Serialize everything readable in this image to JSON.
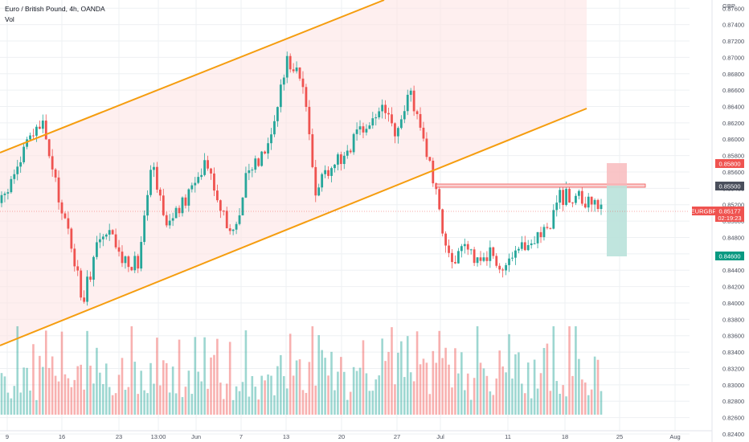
{
  "legend": {
    "title": "Euro / British Pound, 4h, OANDA",
    "volume_label": "Vol"
  },
  "axis": {
    "currency": "GBP",
    "price_ticks": [
      "0.87600",
      "0.87400",
      "0.87200",
      "0.87000",
      "0.86800",
      "0.86600",
      "0.86400",
      "0.86200",
      "0.86000",
      "0.85800",
      "0.85600",
      "0.85400",
      "0.85200",
      "0.85000",
      "0.84800",
      "0.84600",
      "0.84400",
      "0.84200",
      "0.84000",
      "0.83800",
      "0.83600",
      "0.83400",
      "0.83200",
      "0.83000",
      "0.82800",
      "0.82600",
      "0.82400"
    ],
    "time_ticks": [
      "9",
      "16",
      "23",
      "13:00",
      "Jun",
      "7",
      "13",
      "20",
      "27",
      "Jul",
      "11",
      "18",
      "25",
      "Aug"
    ]
  },
  "tags": {
    "stop_loss": "0.85800",
    "entry": "0.85500",
    "symbol": "EURGBP",
    "last_price": "0.85177",
    "countdown": "02:19:23",
    "take_profit": "0.84600"
  },
  "colors": {
    "up": "#26a69a",
    "down": "#ef5350",
    "channel": "#f59d0f",
    "channel_fill": "#fde4e4",
    "stop_zone": "#f8b7b9",
    "profit_zone": "#b9e2da"
  },
  "chart_data": {
    "type": "candlestick",
    "title": "Euro / British Pound, 4h, OANDA",
    "ylabel": "GBP",
    "ylim": [
      0.8238,
      0.8774
    ],
    "price_path": [
      [
        "May 9",
        0.8522
      ],
      [
        "May 10",
        0.856
      ],
      [
        "May 12",
        0.86
      ],
      [
        "May 13",
        0.8618
      ],
      [
        "May 14",
        0.854
      ],
      [
        "May 16",
        0.848
      ],
      [
        "May 17",
        0.84
      ],
      [
        "May 19",
        0.8475
      ],
      [
        "May 20",
        0.848
      ],
      [
        "May 23",
        0.845
      ],
      [
        "May 24",
        0.845
      ],
      [
        "May 25",
        0.858
      ],
      [
        "May 27",
        0.85
      ],
      [
        "May 30",
        0.851
      ],
      [
        "May 31",
        0.854
      ],
      [
        "Jun 2",
        0.858
      ],
      [
        "Jun 6",
        0.852
      ],
      [
        "Jun 8",
        0.848
      ],
      [
        "Jun 9",
        0.856
      ],
      [
        "Jun 13",
        0.858
      ],
      [
        "Jun 14",
        0.862
      ],
      [
        "Jun 15",
        0.87
      ],
      [
        "Jun 16",
        0.868
      ],
      [
        "Jun 17",
        0.854
      ],
      [
        "Jun 20",
        0.8565
      ],
      [
        "Jun 22",
        0.858
      ],
      [
        "Jun 24",
        0.86
      ],
      [
        "Jun 27",
        0.862
      ],
      [
        "Jun 29",
        0.864
      ],
      [
        "Jul 1",
        0.86
      ],
      [
        "Jul 4",
        0.866
      ],
      [
        "Jul 5",
        0.86
      ],
      [
        "Jul 6",
        0.852
      ],
      [
        "Jul 7",
        0.845
      ],
      [
        "Jul 8",
        0.8462
      ],
      [
        "Jul 11",
        0.8455
      ],
      [
        "Jul 12",
        0.846
      ],
      [
        "Jul 13",
        0.8438
      ],
      [
        "Jul 14",
        0.846
      ],
      [
        "Jul 15",
        0.848
      ],
      [
        "Jul 18",
        0.849
      ],
      [
        "Jul 19",
        0.853
      ],
      [
        "Jul 20",
        0.853
      ],
      [
        "Jul 21",
        0.852
      ],
      [
        "Jul 22",
        0.8518
      ]
    ],
    "annotations": {
      "ascending_channel": {
        "upper": [
          [
            "May 9",
            0.859
          ],
          [
            "Jun 22",
            0.8792
          ]
        ],
        "lower": [
          [
            "May 9",
            0.8335
          ],
          [
            "Jul 22",
            0.865
          ]
        ]
      },
      "resistance_zone": [
        0.8548,
        0.8552
      ],
      "short_position": {
        "entry": 0.855,
        "stop": 0.858,
        "target": 0.846
      },
      "last_price": 0.85177
    }
  }
}
